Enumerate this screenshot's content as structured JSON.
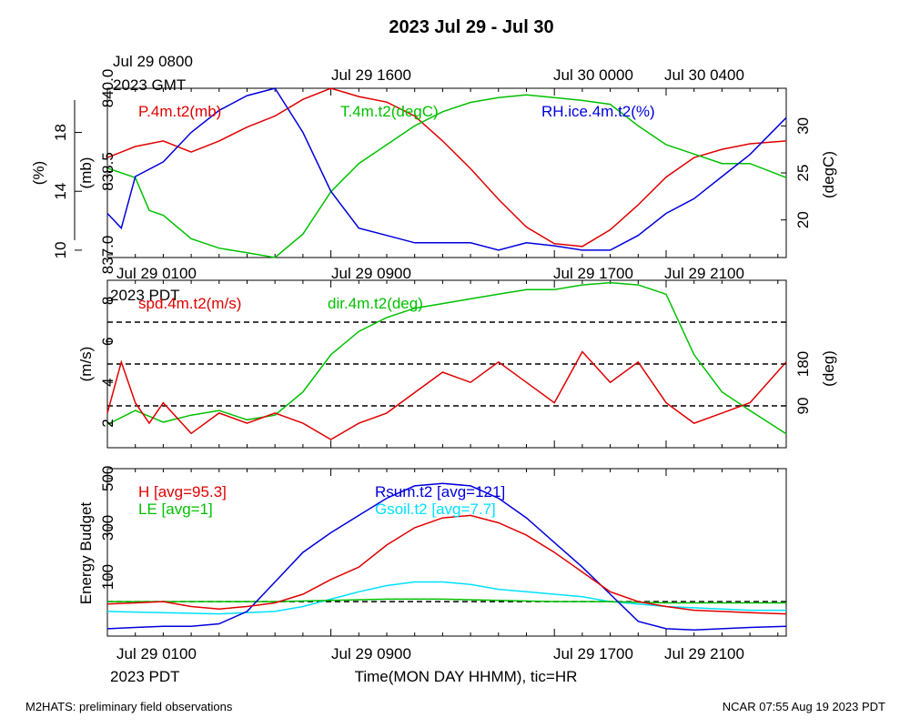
{
  "title": "2023 Jul 29 - Jul 30",
  "footer": {
    "left": "M2HATS: preliminary field observations",
    "right": "NCAR 07:55 Aug 19 2023 PDT"
  },
  "top_axis": {
    "timezone": "2023 GMT",
    "labels": [
      "Jul 29 0800",
      "Jul 29 1600",
      "Jul 30 0000",
      "Jul 30 0400"
    ],
    "hours": [
      0,
      8,
      16,
      20
    ]
  },
  "bottom_axis": {
    "timezone": "2023 PDT",
    "labels": [
      "Jul 29 0100",
      "Jul 29 0900",
      "Jul 29 1700",
      "Jul 29 2100"
    ],
    "hours": [
      0,
      8,
      16,
      20
    ],
    "xlabel": "Time(MON DAY HHMM), tic=HR"
  },
  "chart_data": [
    {
      "type": "line",
      "panel": "top",
      "x_unit": "hours since Jul 29 0100 PDT",
      "xlim": [
        0,
        24.3
      ],
      "left_axes": [
        {
          "label": "(%)",
          "ticks": [
            10,
            14,
            18
          ],
          "range": [
            9.5,
            21
          ]
        },
        {
          "label": "(mb)",
          "ticks": [
            837.0,
            838.5,
            840.0
          ],
          "range": [
            836.95,
            840.0
          ]
        }
      ],
      "right_axis": {
        "label": "(degC)",
        "ticks": [
          20,
          25,
          30
        ],
        "range": [
          16,
          34
        ]
      },
      "series": [
        {
          "name": "P.4m.t2(mb)",
          "color": "#e00000",
          "axis": "mb",
          "points": [
            [
              0,
              838.75
            ],
            [
              1,
              838.95
            ],
            [
              2,
              839.05
            ],
            [
              3,
              838.85
            ],
            [
              4,
              839.05
            ],
            [
              5,
              839.3
            ],
            [
              6,
              839.5
            ],
            [
              7,
              839.8
            ],
            [
              8,
              840.0
            ],
            [
              9,
              839.85
            ],
            [
              10,
              839.75
            ],
            [
              11,
              839.5
            ],
            [
              12,
              839.05
            ],
            [
              13,
              838.55
            ],
            [
              14,
              838.0
            ],
            [
              15,
              837.5
            ],
            [
              16,
              837.2
            ],
            [
              17,
              837.15
            ],
            [
              18,
              837.45
            ],
            [
              19,
              837.9
            ],
            [
              20,
              838.4
            ],
            [
              21,
              838.75
            ],
            [
              22,
              838.9
            ],
            [
              23,
              839.0
            ],
            [
              24.3,
              839.05
            ]
          ]
        },
        {
          "name": "T.4m.t2(degC)",
          "color": "#00c000",
          "axis": "degC",
          "points": [
            [
              0,
              25.5
            ],
            [
              1,
              24.5
            ],
            [
              1.5,
              21
            ],
            [
              2,
              20.5
            ],
            [
              3,
              18
            ],
            [
              4,
              17
            ],
            [
              5,
              16.5
            ],
            [
              6,
              16
            ],
            [
              7,
              18.5
            ],
            [
              8,
              23
            ],
            [
              9,
              26
            ],
            [
              10,
              28
            ],
            [
              11,
              30
            ],
            [
              12,
              31.5
            ],
            [
              13,
              32.5
            ],
            [
              14,
              33
            ],
            [
              15,
              33.3
            ],
            [
              16,
              33
            ],
            [
              17,
              32.7
            ],
            [
              18,
              32.3
            ],
            [
              19,
              30
            ],
            [
              20,
              28
            ],
            [
              21,
              27
            ],
            [
              22,
              26
            ],
            [
              23,
              26
            ],
            [
              24.3,
              24.5
            ]
          ]
        },
        {
          "name": "RH.ice.4m.t2(%)",
          "color": "#0000dd",
          "axis": "pct",
          "points": [
            [
              0,
              12.5
            ],
            [
              0.5,
              11.5
            ],
            [
              1,
              15
            ],
            [
              2,
              16
            ],
            [
              3,
              18
            ],
            [
              4,
              19.5
            ],
            [
              5,
              20.5
            ],
            [
              6,
              21
            ],
            [
              7,
              18
            ],
            [
              8,
              14
            ],
            [
              9,
              11.5
            ],
            [
              10,
              11
            ],
            [
              11,
              10.5
            ],
            [
              12,
              10.5
            ],
            [
              13,
              10.5
            ],
            [
              14,
              10
            ],
            [
              15,
              10.5
            ],
            [
              16,
              10.3
            ],
            [
              17,
              10
            ],
            [
              18,
              10
            ],
            [
              19,
              11
            ],
            [
              20,
              12.5
            ],
            [
              21,
              13.5
            ],
            [
              22,
              15
            ],
            [
              23,
              16.5
            ],
            [
              24.3,
              19
            ]
          ]
        }
      ]
    },
    {
      "type": "line",
      "panel": "middle",
      "x_unit": "hours since Jul 29 0100 PDT",
      "xlim": [
        0,
        24.3
      ],
      "left_axis": {
        "label": "(m/s)",
        "ticks": [
          2,
          4,
          6,
          8
        ],
        "range": [
          0.8,
          9.0
        ]
      },
      "right_axis": {
        "label": "(deg)",
        "ticks": [
          90,
          180
        ],
        "range": [
          0,
          360
        ]
      },
      "reference_lines_deg": [
        90,
        180,
        270
      ],
      "series": [
        {
          "name": "spd.4m.t2(m/s)",
          "color": "#e00000",
          "axis": "mps",
          "points": [
            [
              0,
              2.5
            ],
            [
              0.5,
              5
            ],
            [
              1,
              3
            ],
            [
              1.5,
              2
            ],
            [
              2,
              3
            ],
            [
              3,
              1.5
            ],
            [
              4,
              2.5
            ],
            [
              5,
              2
            ],
            [
              6,
              2.5
            ],
            [
              7,
              2
            ],
            [
              8,
              1.2
            ],
            [
              9,
              2
            ],
            [
              10,
              2.5
            ],
            [
              11,
              3.5
            ],
            [
              12,
              4.5
            ],
            [
              13,
              4
            ],
            [
              14,
              5
            ],
            [
              15,
              4
            ],
            [
              16,
              3
            ],
            [
              17,
              5.5
            ],
            [
              18,
              4
            ],
            [
              19,
              5
            ],
            [
              20,
              3
            ],
            [
              21,
              2
            ],
            [
              22,
              2.5
            ],
            [
              23,
              3
            ],
            [
              24.3,
              5
            ]
          ]
        },
        {
          "name": "dir.4m.t2(deg)",
          "color": "#00c000",
          "axis": "deg",
          "points": [
            [
              0,
              50
            ],
            [
              1,
              80
            ],
            [
              2,
              55
            ],
            [
              3,
              70
            ],
            [
              4,
              80
            ],
            [
              5,
              60
            ],
            [
              6,
              70
            ],
            [
              7,
              120
            ],
            [
              8,
              200
            ],
            [
              9,
              250
            ],
            [
              10,
              280
            ],
            [
              11,
              300
            ],
            [
              12,
              310
            ],
            [
              13,
              320
            ],
            [
              14,
              330
            ],
            [
              15,
              340
            ],
            [
              16,
              340
            ],
            [
              17,
              350
            ],
            [
              18,
              355
            ],
            [
              19,
              350
            ],
            [
              20,
              330
            ],
            [
              21,
              200
            ],
            [
              22,
              120
            ],
            [
              23,
              80
            ],
            [
              24.3,
              30
            ]
          ]
        }
      ]
    },
    {
      "type": "line",
      "panel": "bottom",
      "x_unit": "hours since Jul 29 0100 PDT",
      "xlim": [
        0,
        24.3
      ],
      "ylabel": "Energy Budget",
      "y_ticks": [
        100,
        300,
        500
      ],
      "ylim": [
        -140,
        540
      ],
      "series": [
        {
          "name": "H [avg=95.3]",
          "color": "#e00000",
          "points": [
            [
              0,
              -10
            ],
            [
              1,
              -5
            ],
            [
              2,
              0
            ],
            [
              3,
              -20
            ],
            [
              4,
              -30
            ],
            [
              5,
              -20
            ],
            [
              6,
              -5
            ],
            [
              7,
              30
            ],
            [
              8,
              90
            ],
            [
              9,
              140
            ],
            [
              10,
              230
            ],
            [
              11,
              300
            ],
            [
              12,
              340
            ],
            [
              13,
              350
            ],
            [
              14,
              320
            ],
            [
              15,
              270
            ],
            [
              16,
              200
            ],
            [
              17,
              120
            ],
            [
              18,
              40
            ],
            [
              19,
              0
            ],
            [
              20,
              -20
            ],
            [
              21,
              -35
            ],
            [
              22,
              -40
            ],
            [
              23,
              -45
            ],
            [
              24.3,
              -50
            ]
          ]
        },
        {
          "name": "LE [avg=1]",
          "color": "#00c000",
          "points": [
            [
              0,
              0
            ],
            [
              4,
              0
            ],
            [
              6,
              0
            ],
            [
              8,
              5
            ],
            [
              10,
              10
            ],
            [
              12,
              10
            ],
            [
              14,
              5
            ],
            [
              16,
              0
            ],
            [
              18,
              0
            ],
            [
              20,
              -5
            ],
            [
              22,
              -5
            ],
            [
              24.3,
              -5
            ]
          ]
        },
        {
          "name": "Rsum.t2 [avg=121]",
          "color": "#0000dd",
          "points": [
            [
              0,
              -110
            ],
            [
              1,
              -105
            ],
            [
              2,
              -100
            ],
            [
              3,
              -100
            ],
            [
              4,
              -90
            ],
            [
              5,
              -40
            ],
            [
              6,
              80
            ],
            [
              7,
              200
            ],
            [
              8,
              280
            ],
            [
              9,
              350
            ],
            [
              10,
              420
            ],
            [
              11,
              470
            ],
            [
              12,
              480
            ],
            [
              13,
              470
            ],
            [
              14,
              420
            ],
            [
              15,
              340
            ],
            [
              16,
              240
            ],
            [
              17,
              140
            ],
            [
              18,
              30
            ],
            [
              19,
              -80
            ],
            [
              20,
              -110
            ],
            [
              21,
              -115
            ],
            [
              22,
              -110
            ],
            [
              23,
              -105
            ],
            [
              24.3,
              -100
            ]
          ]
        },
        {
          "name": "Gsoil.t2 [avg=7.7]",
          "color": "#00e0ff",
          "points": [
            [
              0,
              -40
            ],
            [
              2,
              -45
            ],
            [
              4,
              -50
            ],
            [
              6,
              -40
            ],
            [
              7,
              -20
            ],
            [
              8,
              10
            ],
            [
              9,
              40
            ],
            [
              10,
              65
            ],
            [
              11,
              80
            ],
            [
              12,
              80
            ],
            [
              13,
              70
            ],
            [
              14,
              50
            ],
            [
              15,
              40
            ],
            [
              16,
              30
            ],
            [
              17,
              20
            ],
            [
              18,
              0
            ],
            [
              19,
              -10
            ],
            [
              20,
              -20
            ],
            [
              21,
              -25
            ],
            [
              22,
              -30
            ],
            [
              23,
              -35
            ],
            [
              24.3,
              -35
            ]
          ]
        }
      ]
    }
  ]
}
